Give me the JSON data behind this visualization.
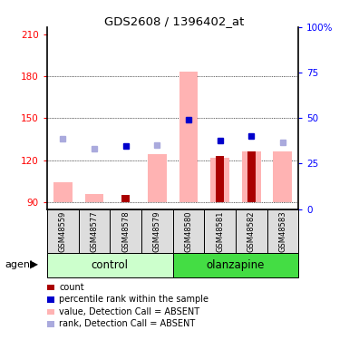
{
  "title": "GDS2608 / 1396402_at",
  "samples": [
    "GSM48559",
    "GSM48577",
    "GSM48578",
    "GSM48579",
    "GSM48580",
    "GSM48581",
    "GSM48582",
    "GSM48583"
  ],
  "ylim_left": [
    85,
    215
  ],
  "ylim_right": [
    0,
    100
  ],
  "yticks_left": [
    90,
    120,
    150,
    180,
    210
  ],
  "yticks_right": [
    0,
    25,
    50,
    75,
    100
  ],
  "bar_bottom": 90,
  "value_bars": [
    104,
    96,
    90,
    124,
    183,
    122,
    126,
    126
  ],
  "count_bars": [
    90,
    90,
    95,
    90,
    90,
    123,
    126,
    90
  ],
  "rank_dots_y": [
    135,
    128,
    130,
    131,
    149,
    134,
    137,
    133
  ],
  "rank_dots_dark": [
    false,
    false,
    true,
    false,
    true,
    true,
    true,
    false
  ],
  "color_pink_bar": "#FFB3B3",
  "color_darkred_bar": "#AA0000",
  "color_blue_dark": "#0000CC",
  "color_blue_light": "#AAAADD",
  "color_control": "#CCFFCC",
  "color_olanzapine": "#44DD44",
  "bar_width": 0.6,
  "legend_items": [
    {
      "color": "#AA0000",
      "label": "count",
      "marker": "square"
    },
    {
      "color": "#0000CC",
      "label": "percentile rank within the sample",
      "marker": "square"
    },
    {
      "color": "#FFB3B3",
      "label": "value, Detection Call = ABSENT",
      "marker": "square"
    },
    {
      "color": "#AAAADD",
      "label": "rank, Detection Call = ABSENT",
      "marker": "square"
    }
  ]
}
